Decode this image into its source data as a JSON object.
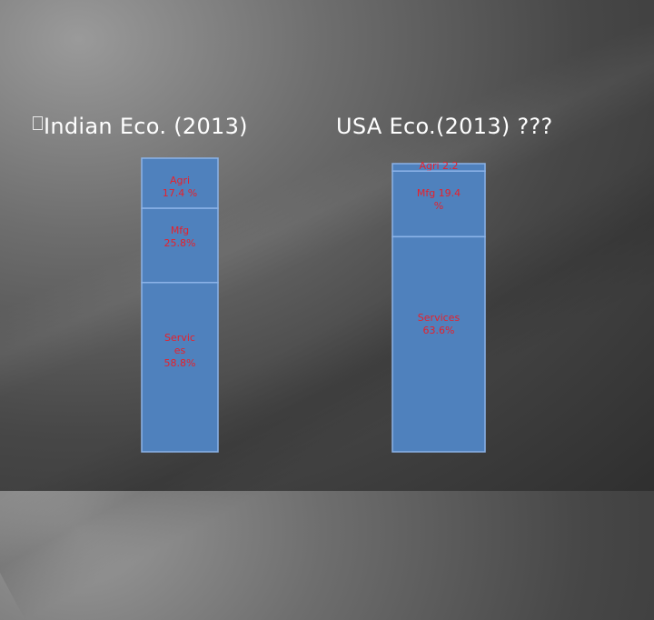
{
  "slide": {
    "heading_india": "Indian Eco. (2013)",
    "heading_usa": "USA Eco.(2013) ???",
    "bullet_icon": "square-bullet-icon"
  },
  "colors": {
    "bar_fill": "#4f81bd",
    "bar_border": "#8cb3e8",
    "label_text": "#e8202a"
  },
  "chart_data": [
    {
      "type": "bar",
      "stacked": true,
      "title": "Indian Eco. (2013)",
      "segments": [
        {
          "name": "Agri",
          "value": 17.4,
          "label_lines": [
            "Agri",
            "17.4 %"
          ]
        },
        {
          "name": "Mfg",
          "value": 25.8,
          "label_lines": [
            "Mfg",
            "25.8%"
          ]
        },
        {
          "name": "Services",
          "value": 58.8,
          "label_lines": [
            "Servic",
            "es",
            "58.8%"
          ]
        }
      ]
    },
    {
      "type": "bar",
      "stacked": true,
      "title": "USA Eco.(2013) ???",
      "segments": [
        {
          "name": "Agri",
          "value": 2.2,
          "label_lines": [
            "Agri 2.2",
            "%"
          ]
        },
        {
          "name": "Mfg",
          "value": 19.4,
          "label_lines": [
            "Mfg 19.4",
            "%"
          ]
        },
        {
          "name": "Services",
          "value": 63.6,
          "label_lines": [
            "Services",
            "63.6%"
          ]
        }
      ]
    }
  ]
}
